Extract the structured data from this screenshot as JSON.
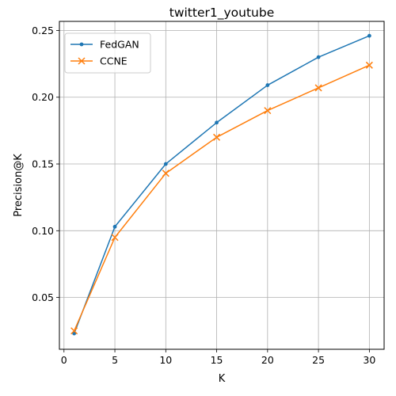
{
  "chart_data": {
    "type": "line",
    "title": "twitter1_youtube",
    "xlabel": "K",
    "ylabel": "Precision@K",
    "x": [
      1,
      5,
      10,
      15,
      20,
      25,
      30
    ],
    "xlim": [
      -0.45,
      31.45
    ],
    "ylim": [
      0.0112,
      0.2568
    ],
    "xticks": [
      0,
      5,
      10,
      15,
      20,
      25,
      30
    ],
    "yticks": [
      0.05,
      0.1,
      0.15,
      0.2,
      0.25
    ],
    "xtick_labels": [
      "0",
      "5",
      "10",
      "15",
      "20",
      "25",
      "30"
    ],
    "ytick_labels": [
      "0.05",
      "0.10",
      "0.15",
      "0.20",
      "0.25"
    ],
    "grid": true,
    "legend_position": "top-left",
    "series": [
      {
        "name": "FedGAN",
        "color": "#1f77b4",
        "marker": "point",
        "values": [
          0.023,
          0.103,
          0.15,
          0.181,
          0.209,
          0.23,
          0.246
        ]
      },
      {
        "name": "CCNE",
        "color": "#ff7f0e",
        "marker": "x",
        "values": [
          0.025,
          0.095,
          0.143,
          0.17,
          0.19,
          0.207,
          0.224
        ]
      }
    ]
  }
}
